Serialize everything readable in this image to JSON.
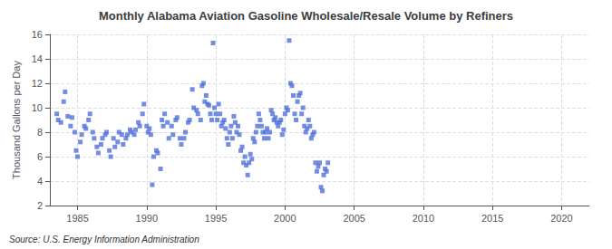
{
  "chart_data": {
    "type": "scatter",
    "title": "Monthly Alabama Aviation Gasoline Wholesale/Resale Volume by Refiners",
    "ylabel": "Thousand Gallons per Day",
    "annotations": [
      "Source: U.S. Energy Information Administration"
    ],
    "marker": "square",
    "grid": true,
    "xlim": [
      1983,
      2022
    ],
    "ylim": [
      2,
      16
    ],
    "xticks": [
      1985,
      1990,
      1995,
      2000,
      2005,
      2010,
      2015,
      2020
    ],
    "yticks": [
      2,
      4,
      6,
      8,
      10,
      12,
      14,
      16
    ],
    "x": [
      1983.5,
      1983.6,
      1983.8,
      1984.0,
      1984.1,
      1984.3,
      1984.5,
      1984.6,
      1984.8,
      1984.9,
      1985.0,
      1985.2,
      1985.3,
      1985.5,
      1985.6,
      1985.8,
      1985.9,
      1986.1,
      1986.2,
      1986.4,
      1986.5,
      1986.7,
      1986.8,
      1987.0,
      1987.1,
      1987.3,
      1987.4,
      1987.6,
      1987.7,
      1987.9,
      1988.0,
      1988.2,
      1988.3,
      1988.5,
      1988.6,
      1988.8,
      1988.9,
      1989.1,
      1989.2,
      1989.4,
      1989.5,
      1989.7,
      1989.8,
      1990.0,
      1990.1,
      1990.2,
      1990.3,
      1990.4,
      1990.5,
      1990.7,
      1990.8,
      1991.0,
      1991.1,
      1991.2,
      1991.3,
      1991.5,
      1991.6,
      1991.8,
      1991.9,
      1992.1,
      1992.2,
      1992.4,
      1992.5,
      1992.7,
      1992.8,
      1993.0,
      1993.1,
      1993.3,
      1993.4,
      1993.6,
      1993.7,
      1993.9,
      1994.0,
      1994.1,
      1994.2,
      1994.3,
      1994.4,
      1994.5,
      1994.6,
      1994.7,
      1994.8,
      1994.9,
      1995.0,
      1995.1,
      1995.2,
      1995.3,
      1995.4,
      1995.5,
      1995.6,
      1995.7,
      1995.8,
      1995.9,
      1996.0,
      1996.1,
      1996.2,
      1996.3,
      1996.4,
      1996.5,
      1996.6,
      1996.7,
      1996.8,
      1996.9,
      1997.0,
      1997.1,
      1997.2,
      1997.3,
      1997.4,
      1997.5,
      1997.6,
      1997.7,
      1997.8,
      1997.9,
      1998.0,
      1998.1,
      1998.2,
      1998.3,
      1998.4,
      1998.5,
      1998.6,
      1998.7,
      1998.8,
      1998.9,
      1999.0,
      1999.1,
      1999.2,
      1999.3,
      1999.4,
      1999.5,
      1999.6,
      1999.7,
      1999.8,
      1999.9,
      2000.0,
      2000.1,
      2000.2,
      2000.3,
      2000.4,
      2000.5,
      2000.6,
      2000.7,
      2000.8,
      2000.9,
      2001.0,
      2001.1,
      2001.2,
      2001.3,
      2001.4,
      2001.5,
      2001.6,
      2001.7,
      2001.8,
      2001.9,
      2002.0,
      2002.1,
      2002.2,
      2002.3,
      2002.4,
      2002.5,
      2002.6,
      2002.7,
      2002.8,
      2002.9,
      2003.0,
      2003.1
    ],
    "values": [
      9.5,
      9.0,
      8.8,
      10.5,
      11.3,
      9.3,
      8.5,
      9.2,
      8.0,
      6.5,
      6.0,
      7.2,
      7.8,
      8.5,
      8.3,
      9.0,
      9.5,
      8.0,
      7.5,
      6.8,
      6.3,
      7.0,
      7.5,
      7.8,
      8.0,
      6.5,
      6.0,
      7.5,
      6.8,
      7.2,
      8.0,
      7.8,
      7.0,
      7.5,
      7.8,
      8.2,
      8.0,
      7.8,
      8.2,
      8.8,
      8.5,
      9.5,
      10.3,
      8.5,
      8.0,
      8.3,
      7.8,
      3.7,
      6.0,
      6.5,
      6.3,
      5.0,
      9.0,
      8.5,
      9.5,
      8.8,
      7.5,
      8.5,
      7.8,
      9.0,
      9.2,
      7.5,
      7.0,
      7.5,
      8.0,
      8.8,
      9.0,
      11.5,
      10.0,
      9.8,
      9.5,
      9.0,
      11.8,
      12.0,
      10.5,
      11.0,
      10.3,
      10.2,
      9.5,
      9.0,
      15.3,
      10.0,
      9.5,
      9.0,
      10.3,
      9.5,
      8.5,
      8.8,
      9.0,
      8.3,
      7.5,
      7.0,
      8.0,
      8.5,
      7.5,
      9.3,
      8.8,
      8.0,
      8.5,
      7.8,
      6.5,
      6.8,
      5.5,
      6.0,
      5.3,
      4.5,
      5.5,
      6.2,
      5.8,
      7.5,
      7.2,
      8.0,
      8.5,
      9.5,
      9.0,
      8.5,
      8.0,
      7.5,
      8.0,
      8.3,
      7.5,
      8.0,
      9.8,
      9.5,
      9.0,
      9.2,
      8.8,
      8.5,
      8.8,
      9.0,
      7.8,
      8.2,
      9.5,
      10.0,
      9.8,
      15.5,
      12.0,
      11.8,
      11.0,
      9.5,
      9.0,
      10.5,
      11.0,
      11.2,
      9.5,
      10.0,
      8.5,
      8.0,
      8.3,
      9.0,
      8.5,
      7.5,
      7.8,
      8.0,
      5.5,
      4.8,
      5.2,
      5.5,
      3.5,
      3.2,
      4.5,
      5.0,
      4.8,
      5.5
    ]
  }
}
